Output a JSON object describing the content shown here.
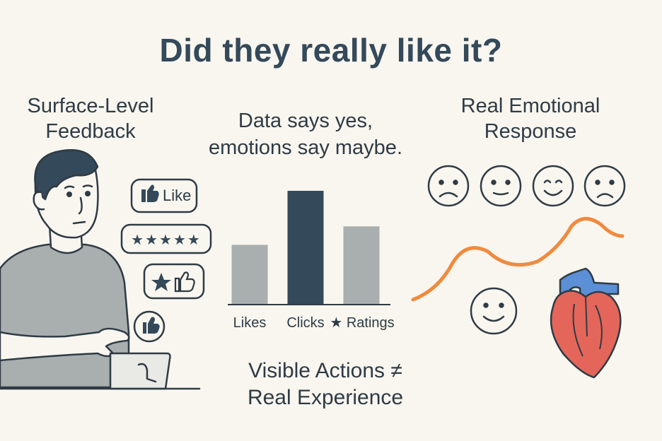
{
  "title": "Did they really like it?",
  "left": {
    "heading_line1": "Surface-Level",
    "heading_line2": "Feedback",
    "like_label": "Like",
    "stars_label": "★★★★★"
  },
  "middle": {
    "caption_line1": "Data says yes,",
    "caption_line2": "emotions say maybe."
  },
  "right": {
    "heading_line1": "Real Emotional",
    "heading_line2": "Response"
  },
  "bottom": {
    "line1": "Visible Actions ≠",
    "line2": "Real Experience"
  },
  "chart_data": {
    "type": "bar",
    "categories": [
      "Likes",
      "Clicks",
      "★ Ratings"
    ],
    "values": [
      42,
      80,
      55
    ],
    "ylim": [
      0,
      80
    ],
    "colors": [
      "#a9aeae",
      "#34495a",
      "#a9aeae"
    ],
    "title": "",
    "xlabel": "",
    "ylabel": ""
  },
  "colors": {
    "dark": "#34495a",
    "gray": "#a9aeae",
    "wave": "#f08a3e",
    "heart": "#e4665a",
    "vessel": "#5b8fd6"
  }
}
